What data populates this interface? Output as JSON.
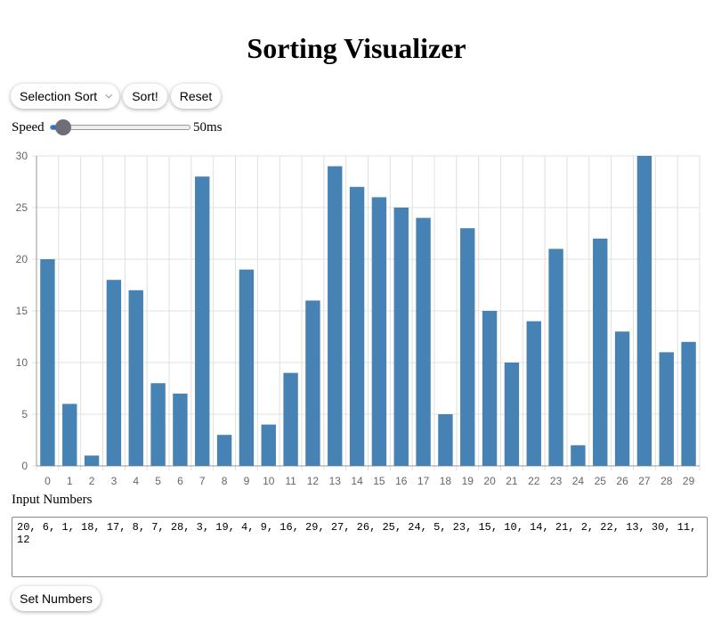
{
  "title": "Sorting Visualizer",
  "controls": {
    "algorithm_selected": "Selection Sort",
    "sort_label": "Sort!",
    "reset_label": "Reset",
    "speed_label": "Speed",
    "speed_value": "50ms",
    "speed_level_fraction": 0.05
  },
  "input": {
    "label": "Input Numbers",
    "value": "20, 6, 1, 18, 17, 8, 7, 28, 3, 19, 4, 9, 16, 29, 27, 26, 25, 24, 5, 23, 15, 10, 14, 21, 2, 22, 13, 30, 11, 12",
    "set_label": "Set Numbers"
  },
  "colors": {
    "bar": "#4682b4",
    "grid": "#e0e0e0",
    "axis": "#999999",
    "slider_fill": "#1a73e8",
    "slider_thumb": "#6e6e78"
  },
  "chart_data": {
    "type": "bar",
    "categories": [
      "0",
      "1",
      "2",
      "3",
      "4",
      "5",
      "6",
      "7",
      "8",
      "9",
      "10",
      "11",
      "12",
      "13",
      "14",
      "15",
      "16",
      "17",
      "18",
      "19",
      "20",
      "21",
      "22",
      "23",
      "24",
      "25",
      "26",
      "27",
      "28",
      "29"
    ],
    "values": [
      20,
      6,
      1,
      18,
      17,
      8,
      7,
      28,
      3,
      19,
      4,
      9,
      16,
      29,
      27,
      26,
      25,
      24,
      5,
      23,
      15,
      10,
      14,
      21,
      2,
      22,
      13,
      30,
      11,
      12
    ],
    "ylim": [
      0,
      30
    ],
    "yticks": [
      0,
      5,
      10,
      15,
      20,
      25,
      30
    ],
    "grid": true,
    "title": "",
    "xlabel": "",
    "ylabel": ""
  }
}
